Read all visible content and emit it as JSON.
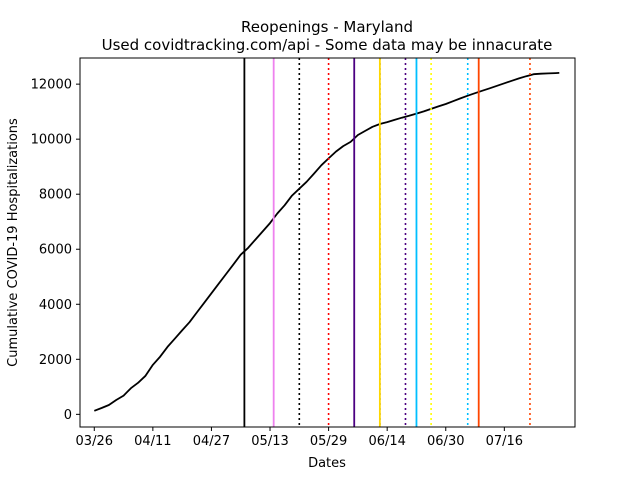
{
  "chart_data": {
    "type": "line",
    "title": "Reopenings - Maryland",
    "subtitle": "Used covidtracking.com/api - Some data may be innacurate",
    "xlabel": "Dates",
    "ylabel": "Cumulative COVID-19 Hospitalizations",
    "x_start": "2020-03-26",
    "x_ticks": [
      "03/26",
      "04/11",
      "04/27",
      "05/13",
      "05/29",
      "06/14",
      "06/30",
      "07/16"
    ],
    "y_ticks": [
      0,
      2000,
      4000,
      6000,
      8000,
      10000,
      12000
    ],
    "xlim": [
      -3.9,
      131.3
    ],
    "ylim": [
      -460,
      12950
    ],
    "line_color": "#000000",
    "series": [
      {
        "x": [
          0,
          2,
          4,
          6,
          8,
          10,
          12,
          14,
          16,
          18,
          20,
          22,
          24,
          26,
          28,
          30,
          32,
          34,
          36,
          38,
          40,
          42,
          44,
          46,
          48,
          50,
          52,
          54,
          56,
          58,
          60,
          62,
          64,
          66,
          68,
          70,
          72,
          74,
          76,
          78,
          80,
          82,
          84,
          86,
          88,
          90,
          92,
          94,
          96,
          98,
          100,
          102,
          104,
          106,
          108,
          110,
          112,
          114,
          116,
          118,
          120,
          122,
          124,
          126,
          127
        ],
        "values": [
          130,
          230,
          340,
          520,
          680,
          950,
          1150,
          1400,
          1800,
          2100,
          2450,
          2750,
          3050,
          3350,
          3700,
          4050,
          4400,
          4750,
          5100,
          5450,
          5800,
          6050,
          6350,
          6650,
          6950,
          7300,
          7600,
          7950,
          8200,
          8450,
          8750,
          9050,
          9300,
          9550,
          9750,
          9900,
          10150,
          10300,
          10450,
          10550,
          10620,
          10700,
          10780,
          10850,
          10930,
          11010,
          11100,
          11190,
          11280,
          11380,
          11480,
          11580,
          11670,
          11760,
          11850,
          11940,
          12030,
          12120,
          12210,
          12290,
          12360,
          12380,
          12390,
          12400,
          12410
        ]
      }
    ],
    "vlines": [
      {
        "x": 41,
        "color": "#000000",
        "style": "solid"
      },
      {
        "x": 49,
        "color": "#ee82ee",
        "style": "solid"
      },
      {
        "x": 56,
        "color": "#000000",
        "style": "dotted"
      },
      {
        "x": 64,
        "color": "#ff0000",
        "style": "dotted"
      },
      {
        "x": 71,
        "color": "#4b0082",
        "style": "solid"
      },
      {
        "x": 78,
        "color": "#000000",
        "style": "dotted"
      },
      {
        "x": 78,
        "color": "#ffd700",
        "style": "solid"
      },
      {
        "x": 85,
        "color": "#4b0082",
        "style": "dotted"
      },
      {
        "x": 88,
        "color": "#00bfff",
        "style": "solid"
      },
      {
        "x": 92,
        "color": "#ffff00",
        "style": "dotted"
      },
      {
        "x": 102,
        "color": "#00bfff",
        "style": "dotted"
      },
      {
        "x": 105,
        "color": "#ff4500",
        "style": "solid"
      },
      {
        "x": 119,
        "color": "#ff4500",
        "style": "dotted"
      }
    ],
    "grid": false,
    "legend": "none"
  }
}
